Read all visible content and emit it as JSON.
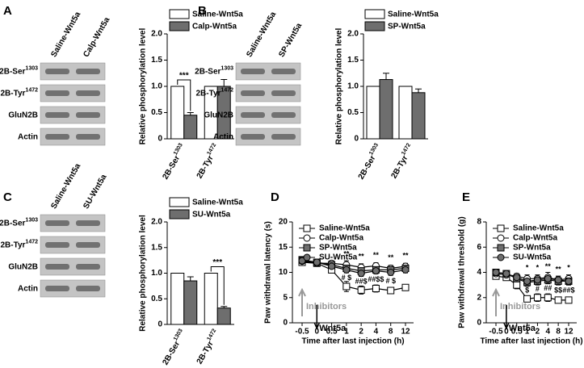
{
  "chart_data": [
    {
      "panel": "A",
      "type": "bar",
      "blot": {
        "lanes": [
          "Saline-Wnt5a",
          "Calp-Wnt5a"
        ],
        "rows": [
          {
            "text": "2B-Ser",
            "sup": "1303"
          },
          {
            "text": "2B-Tyr",
            "sup": "1472"
          },
          {
            "text": "GluN2B"
          },
          {
            "text": "Actin"
          }
        ]
      },
      "ylabel": "Relative phosphorylation level",
      "ylim": [
        0,
        2
      ],
      "yticks": [
        0,
        0.5,
        {
          "value": 1,
          "label": "1.0"
        },
        1.5,
        {
          "value": 2,
          "label": "2.0"
        }
      ],
      "categories": [
        {
          "text": "2B-Ser",
          "sup": "1303"
        },
        {
          "text": "2B-Tyr",
          "sup": "1472"
        }
      ],
      "series": [
        {
          "name": "Saline-Wnt5a",
          "color": "#ffffff",
          "values": [
            1,
            1
          ]
        },
        {
          "name": "Calp-Wnt5a",
          "color": "#6e6e6e",
          "values": [
            0.45,
            1
          ],
          "errors": [
            0.05,
            0.13
          ]
        }
      ],
      "annotations": [
        {
          "text": "***",
          "category": 0
        }
      ]
    },
    {
      "panel": "B",
      "type": "bar",
      "blot": {
        "lanes": [
          "Saline-Wnt5a",
          "SP-Wnt5a"
        ],
        "rows": [
          {
            "text": "2B-Ser",
            "sup": "1303"
          },
          {
            "text": "2B-Tyr",
            "sup": "1472"
          },
          {
            "text": "GluN2B"
          },
          {
            "text": "Actin"
          }
        ]
      },
      "ylabel": "Relative phosphorylation level",
      "ylim": [
        0,
        2
      ],
      "yticks": [
        0,
        0.5,
        {
          "value": 1,
          "label": "1.0"
        },
        1.5,
        {
          "value": 2,
          "label": "2.0"
        }
      ],
      "categories": [
        {
          "text": "2B-Ser",
          "sup": "1303"
        },
        {
          "text": "2B-Tyr",
          "sup": "1472"
        }
      ],
      "series": [
        {
          "name": "Saline-Wnt5a",
          "color": "#ffffff",
          "values": [
            1,
            1
          ]
        },
        {
          "name": "SP-Wnt5a",
          "color": "#6e6e6e",
          "values": [
            1.13,
            0.88
          ],
          "errors": [
            0.12,
            0.07
          ]
        }
      ],
      "annotations": []
    },
    {
      "panel": "C",
      "type": "bar",
      "blot": {
        "lanes": [
          "Saline-Wnt5a",
          "SU-Wnt5a"
        ],
        "rows": [
          {
            "text": "2B-Ser",
            "sup": "1303"
          },
          {
            "text": "2B-Tyr",
            "sup": "1472"
          },
          {
            "text": "GluN2B"
          },
          {
            "text": "Actin"
          }
        ]
      },
      "ylabel": "Relative phosphorylation level",
      "ylim": [
        0,
        2
      ],
      "yticks": [
        0,
        0.5,
        {
          "value": 1,
          "label": "1.0"
        },
        1.5,
        {
          "value": 2,
          "label": "2.0"
        }
      ],
      "categories": [
        {
          "text": "2B-Ser",
          "sup": "1303"
        },
        {
          "text": "2B-Tyr",
          "sup": "1472"
        }
      ],
      "series": [
        {
          "name": "Saline-Wnt5a",
          "color": "#ffffff",
          "values": [
            1,
            1
          ]
        },
        {
          "name": "SU-Wnt5a",
          "color": "#6e6e6e",
          "values": [
            0.85,
            0.32
          ],
          "errors": [
            0.08,
            0.03
          ]
        }
      ],
      "annotations": [
        {
          "text": "***",
          "category": 1
        }
      ]
    },
    {
      "panel": "D",
      "type": "line",
      "ylabel": "Paw withdrawal latency (s)",
      "xlabel": "Time after last injection (h)",
      "ylim": [
        0,
        20
      ],
      "yticks": [
        0,
        5,
        10,
        15,
        20
      ],
      "categories": [
        "-0.5",
        "0",
        "0.5",
        "1",
        "2",
        "4",
        "8",
        "12"
      ],
      "series": [
        {
          "name": "Saline-Wnt5a",
          "color": "#ffffff",
          "marker": "square",
          "values": [
            12,
            11.8,
            10.5,
            7.2,
            6.5,
            6.8,
            6.4,
            7.0
          ],
          "errors": [
            0.4,
            0.5,
            0.6,
            1.0,
            0.8,
            0.7,
            0.6,
            0.6
          ]
        },
        {
          "name": "Calp-Wnt5a",
          "color": "#ffffff",
          "marker": "circle",
          "values": [
            12.2,
            11.8,
            11.8,
            11.5,
            11,
            11.3,
            10.8,
            11.2
          ],
          "errors": [
            0.4,
            0.4,
            0.5,
            0.8,
            0.7,
            0.6,
            0.6,
            0.6
          ]
        },
        {
          "name": "SP-Wnt5a",
          "color": "#6e6e6e",
          "marker": "square",
          "values": [
            12.5,
            12,
            11.5,
            10.8,
            10.3,
            10.5,
            10.5,
            10.8
          ],
          "errors": [
            0.4,
            0.4,
            0.5,
            0.6,
            0.6,
            0.6,
            0.6,
            0.6
          ]
        },
        {
          "name": "SU-Wnt5a",
          "color": "#6e6e6e",
          "marker": "circle",
          "values": [
            12.3,
            12,
            11.2,
            10.5,
            9.8,
            10.3,
            10,
            10.5
          ],
          "errors": [
            0.4,
            0.4,
            0.5,
            0.6,
            0.6,
            0.6,
            0.6,
            0.6
          ]
        }
      ],
      "annotations": [
        {
          "text": "**",
          "x": "1",
          "position": "above"
        },
        {
          "text": "**",
          "x": "2",
          "position": "above"
        },
        {
          "text": "**",
          "x": "4",
          "position": "above"
        },
        {
          "text": "**",
          "x": "8",
          "position": "above"
        },
        {
          "text": "**",
          "x": "12",
          "position": "above"
        },
        {
          "text": "# $",
          "x": "1",
          "position": "below"
        },
        {
          "text": "##$",
          "x": "2",
          "position": "below"
        },
        {
          "text": "##$$",
          "x": "4",
          "position": "below"
        },
        {
          "text": "# $",
          "x": "8",
          "position": "below"
        }
      ],
      "events": [
        {
          "text": "Inhibitors",
          "x": "-0.5",
          "direction": "up",
          "color": "#999999"
        },
        {
          "text": "Wnt5a",
          "x": "0",
          "direction": "down",
          "color": "#000000"
        }
      ]
    },
    {
      "panel": "E",
      "type": "line",
      "ylabel": "Paw withdrawal threshold (g)",
      "xlabel": "Time after last injection (h)",
      "ylim": [
        0,
        8
      ],
      "yticks": [
        0,
        2,
        4,
        6,
        8
      ],
      "categories": [
        "-0.5",
        "0",
        "0.5",
        "1",
        "2",
        "4",
        "8",
        "12"
      ],
      "series": [
        {
          "name": "Saline-Wnt5a",
          "color": "#ffffff",
          "marker": "square",
          "values": [
            3.7,
            3.6,
            3.0,
            1.9,
            2.0,
            2.0,
            1.8,
            1.8
          ],
          "errors": [
            0.15,
            0.15,
            0.3,
            0.2,
            0.3,
            0.3,
            0.2,
            0.2
          ]
        },
        {
          "name": "Calp-Wnt5a",
          "color": "#ffffff",
          "marker": "circle",
          "values": [
            3.9,
            3.8,
            3.7,
            3.5,
            3.5,
            3.6,
            3.4,
            3.5
          ],
          "errors": [
            0.15,
            0.15,
            0.2,
            0.3,
            0.3,
            0.4,
            0.3,
            0.3
          ]
        },
        {
          "name": "SP-Wnt5a",
          "color": "#6e6e6e",
          "marker": "square",
          "values": [
            4.0,
            3.9,
            3.5,
            3.2,
            3.3,
            3.4,
            3.3,
            3.3
          ],
          "errors": [
            0.15,
            0.15,
            0.2,
            0.3,
            0.3,
            0.3,
            0.3,
            0.3
          ]
        },
        {
          "name": "SU-Wnt5a",
          "color": "#6e6e6e",
          "marker": "circle",
          "values": [
            4.0,
            3.9,
            3.6,
            3.3,
            3.4,
            3.5,
            3.4,
            3.3
          ],
          "errors": [
            0.15,
            0.15,
            0.2,
            0.3,
            0.3,
            0.3,
            0.3,
            0.3
          ]
        }
      ],
      "annotations": [
        {
          "text": "*",
          "x": "1",
          "position": "above"
        },
        {
          "text": "*",
          "x": "2",
          "position": "above"
        },
        {
          "text": "**",
          "x": "4",
          "position": "above"
        },
        {
          "text": "**",
          "x": "8",
          "position": "above"
        },
        {
          "text": "*",
          "x": "12",
          "position": "above"
        },
        {
          "text": "$",
          "x": "1",
          "position": "below"
        },
        {
          "text": "#",
          "x": "2",
          "position": "below"
        },
        {
          "text": "##",
          "x": "4",
          "position": "below"
        },
        {
          "text": "$$",
          "x": "8",
          "position": "below"
        },
        {
          "text": "##$",
          "x": "12",
          "position": "below"
        }
      ],
      "events": [
        {
          "text": "Inhibitors",
          "x": "-0.5",
          "direction": "up",
          "color": "#999999"
        },
        {
          "text": "Wnt5a",
          "x": "0",
          "direction": "down",
          "color": "#000000"
        }
      ]
    }
  ]
}
